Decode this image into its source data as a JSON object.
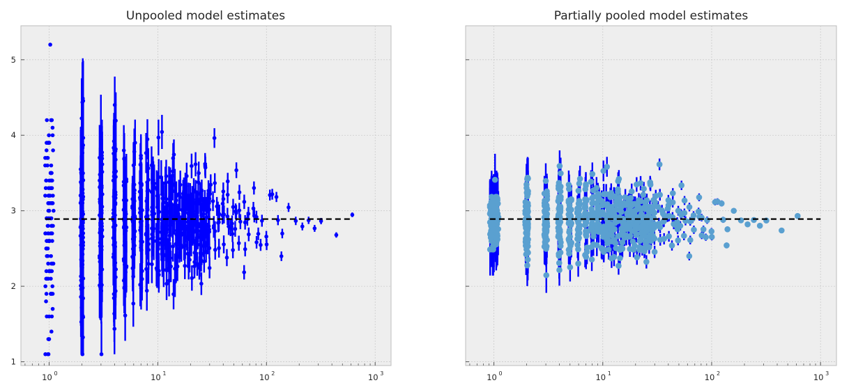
{
  "colors": {
    "background": "#ffffff",
    "axes_face": "#eeeeee",
    "grid": "#cbcbcb",
    "spine": "#bcbcbc",
    "unpooled_points": "#0000ff",
    "pooled_points": "#5aa0d0",
    "error_bars": "#0000ff",
    "reference_line": "#000000"
  },
  "chart_data": [
    {
      "type": "scatter",
      "title": "Unpooled model estimates",
      "xlabel": "",
      "ylabel": "",
      "xscale": "log",
      "xlim": [
        0.55,
        1400
      ],
      "ylim": [
        0.95,
        5.45
      ],
      "xticks": [
        1,
        10,
        100,
        1000
      ],
      "xtick_labels": [
        {
          "base": "10",
          "exp": "0"
        },
        {
          "base": "10",
          "exp": "1"
        },
        {
          "base": "10",
          "exp": "2"
        },
        {
          "base": "10",
          "exp": "3"
        }
      ],
      "yticks": [
        1,
        2,
        3,
        4,
        5
      ],
      "ytick_labels": [
        "1",
        "2",
        "3",
        "4",
        "5"
      ],
      "grid": true,
      "reference_line_y": 2.89,
      "reference_line_x_range": [
        0.92,
        600
      ],
      "error_bars": true,
      "points": "generated"
    },
    {
      "type": "scatter",
      "title": "Partially pooled model estimates",
      "xlabel": "",
      "ylabel": "",
      "xscale": "log",
      "xlim": [
        0.55,
        1400
      ],
      "ylim": [
        0.95,
        5.45
      ],
      "xticks": [
        1,
        10,
        100,
        1000
      ],
      "xtick_labels": [
        {
          "base": "10",
          "exp": "0"
        },
        {
          "base": "10",
          "exp": "1"
        },
        {
          "base": "10",
          "exp": "2"
        },
        {
          "base": "10",
          "exp": "3"
        }
      ],
      "yticks": [
        1,
        2,
        3,
        4,
        5
      ],
      "ytick_labels": [
        "",
        "",
        "",
        "",
        ""
      ],
      "grid": true,
      "reference_line_y": 2.89,
      "reference_line_x_range": [
        0.92,
        1000
      ],
      "error_bars": true,
      "points": "generated"
    }
  ]
}
